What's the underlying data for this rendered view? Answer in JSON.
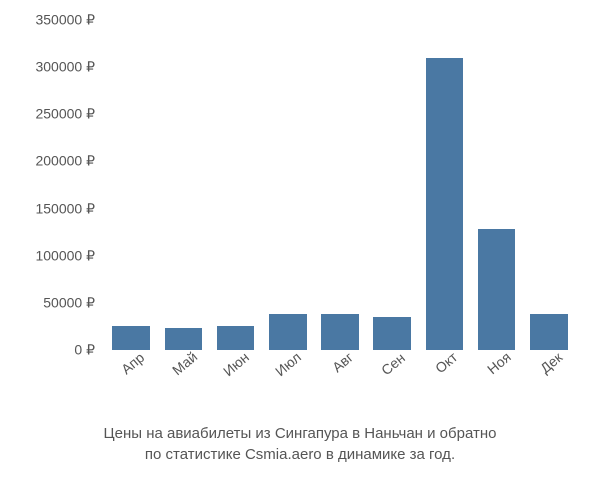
{
  "chart": {
    "type": "bar",
    "categories": [
      "Апр",
      "Май",
      "Июн",
      "Июл",
      "Авг",
      "Сен",
      "Окт",
      "Ноя",
      "Дек"
    ],
    "values": [
      25000,
      23000,
      25000,
      38000,
      38000,
      35000,
      310000,
      128000,
      38000
    ],
    "bar_color": "#4a78a3",
    "bar_width_ratio": 0.72,
    "ylim": [
      0,
      350000
    ],
    "ytick_step": 50000,
    "ytick_labels": [
      "0 ₽",
      "50000 ₽",
      "100000 ₽",
      "150000 ₽",
      "200000 ₽",
      "250000 ₽",
      "300000 ₽",
      "350000 ₽"
    ],
    "background_color": "#ffffff",
    "text_color": "#555555",
    "label_fontsize": 14,
    "caption_fontsize": 15,
    "xlabel_rotation": -40
  },
  "caption": {
    "line1": "Цены на авиабилеты из Сингапура в Наньчан и обратно",
    "line2": "по статистике Csmia.aero в динамике за год."
  }
}
